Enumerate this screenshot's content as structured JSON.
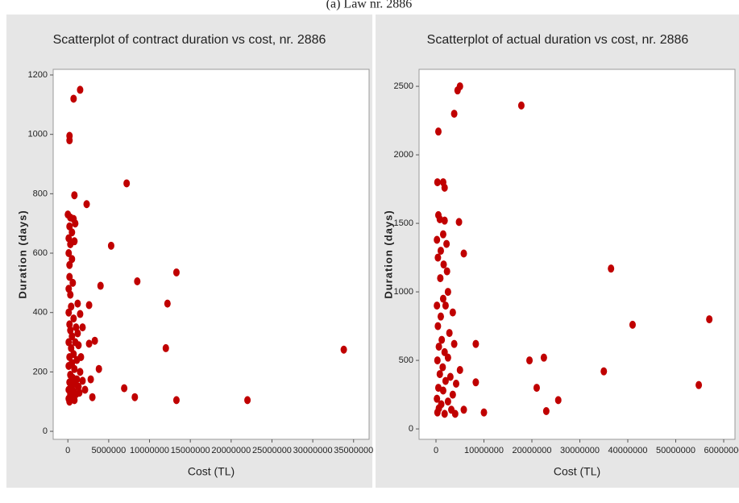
{
  "caption": "(a) Law nr. 2886",
  "chart_data": [
    {
      "type": "scatter",
      "title": "Scatterplot of contract duration vs cost, nr. 2886",
      "x_label": "Cost (TL)",
      "y_label": "Duration (days)",
      "color": "#c00000",
      "xlim": [
        -1800000,
        36900000
      ],
      "ylim": [
        -27,
        1219
      ],
      "xticks": [
        0,
        5000000,
        10000000,
        15000000,
        20000000,
        25000000,
        30000000,
        35000000
      ],
      "yticks": [
        0,
        200,
        400,
        600,
        800,
        1000,
        1200
      ],
      "x": [
        700000,
        1500000,
        200000,
        200000,
        800000,
        2300000,
        7200000,
        5300000,
        4000000,
        8500000,
        13300000,
        12200000,
        12000000,
        33800000,
        22000000,
        13300000,
        8200000,
        6900000,
        3000000,
        2800000,
        3800000,
        2600000,
        3300000,
        2600000,
        1800000,
        1500000,
        1200000,
        0,
        300000,
        700000,
        200000,
        900000,
        500000,
        100000,
        800000,
        300000,
        100000,
        500000,
        200000,
        200000,
        600000,
        100000,
        300000,
        400000,
        100000,
        700000,
        200000,
        1000000,
        300000,
        500000,
        100000,
        900000,
        1300000,
        400000,
        700000,
        200000,
        1100000,
        500000,
        100000,
        800000,
        1500000,
        300000,
        600000,
        1100000,
        200000,
        900000,
        400000,
        1300000,
        100000,
        700000,
        1800000,
        300000,
        1000000,
        500000,
        100000,
        1400000,
        800000,
        2100000,
        200000,
        1600000,
        1200000
      ],
      "values": [
        1120,
        1150,
        980,
        995,
        795,
        765,
        835,
        625,
        490,
        505,
        535,
        430,
        280,
        275,
        105,
        105,
        115,
        145,
        115,
        175,
        210,
        295,
        305,
        425,
        350,
        395,
        430,
        730,
        720,
        715,
        690,
        700,
        670,
        650,
        640,
        630,
        600,
        580,
        560,
        520,
        500,
        480,
        460,
        420,
        400,
        380,
        360,
        350,
        340,
        320,
        300,
        300,
        290,
        280,
        260,
        250,
        240,
        230,
        220,
        210,
        200,
        190,
        180,
        175,
        165,
        160,
        150,
        150,
        140,
        135,
        170,
        125,
        125,
        115,
        110,
        130,
        105,
        140,
        100,
        250,
        330
      ]
    },
    {
      "type": "scatter",
      "title": "Scatterplot of actual duration vs cost, nr. 2886",
      "x_label": "Cost (TL)",
      "y_label": "Duration (days)",
      "color": "#c00000",
      "xlim": [
        -3530000,
        62350000
      ],
      "ylim": [
        -76,
        2624
      ],
      "xticks": [
        0,
        10000000,
        20000000,
        30000000,
        40000000,
        50000000,
        60000000
      ],
      "yticks": [
        0,
        500,
        1000,
        1500,
        2000,
        2500
      ],
      "x": [
        500000,
        4500000,
        5000000,
        3800000,
        17800000,
        300000,
        1500000,
        1800000,
        500000,
        800000,
        1800000,
        4800000,
        1500000,
        200000,
        2200000,
        5800000,
        1000000,
        400000,
        1600000,
        2300000,
        900000,
        2500000,
        1500000,
        200000,
        3500000,
        2000000,
        1000000,
        400000,
        2800000,
        1200000,
        3800000,
        8300000,
        600000,
        1800000,
        2500000,
        300000,
        5000000,
        1400000,
        800000,
        3000000,
        2000000,
        8300000,
        4200000,
        500000,
        1500000,
        3500000,
        200000,
        2500000,
        1100000,
        600000,
        3200000,
        5800000,
        300000,
        1800000,
        4000000,
        10000000,
        19500000,
        22500000,
        21000000,
        23000000,
        25500000,
        35000000,
        36500000,
        41000000,
        54800000,
        57000000
      ],
      "values": [
        2170,
        2470,
        2500,
        2300,
        2360,
        1800,
        1800,
        1760,
        1560,
        1530,
        1520,
        1510,
        1420,
        1380,
        1350,
        1280,
        1300,
        1250,
        1200,
        1150,
        1100,
        1000,
        950,
        900,
        850,
        900,
        820,
        750,
        700,
        650,
        620,
        620,
        600,
        560,
        520,
        500,
        430,
        450,
        400,
        380,
        350,
        340,
        330,
        300,
        280,
        250,
        220,
        200,
        180,
        150,
        140,
        140,
        120,
        110,
        110,
        120,
        500,
        520,
        300,
        130,
        210,
        420,
        1170,
        760,
        320,
        800
      ]
    }
  ]
}
